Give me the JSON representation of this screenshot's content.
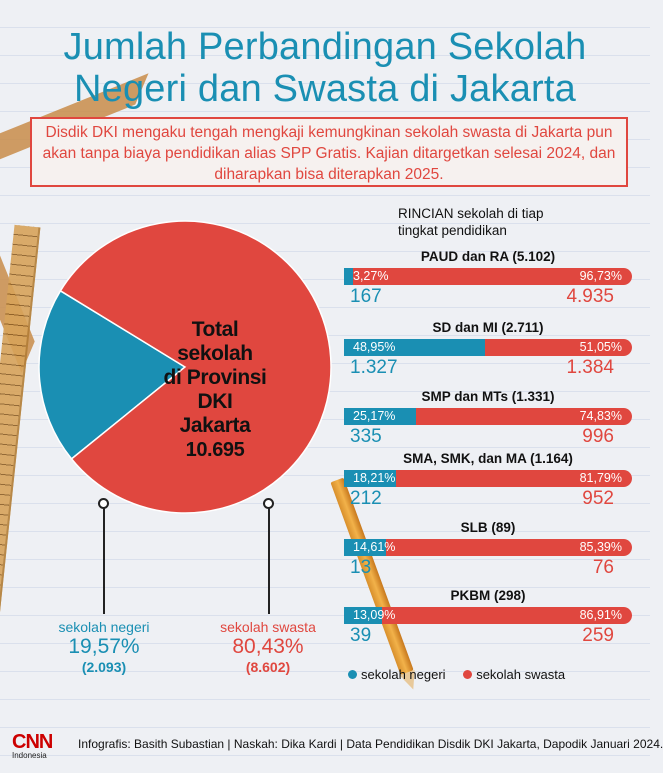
{
  "title_line1": "Jumlah Perbandingan Sekolah",
  "title_line2": "Negeri dan Swasta di Jakarta",
  "lead_text": "Disdik DKI mengaku tengah mengkaji kemungkinan sekolah swasta di Jakarta pun akan tanpa biaya pendidikan alias SPP Gratis. Kajian ditargetkan selesai 2024, dan diharapkan bisa diterapkan 2025.",
  "colors": {
    "negeri": "#1a8fb3",
    "swasta": "#e0473f",
    "title": "#1a8fb3"
  },
  "pie": {
    "center_label": [
      "Total",
      "sekolah",
      "di Provinsi",
      "DKI",
      "Jakarta"
    ],
    "total": "10.695",
    "negeri": {
      "label": "sekolah negeri",
      "pct": "19,57%",
      "count": "(2.093)"
    },
    "swasta": {
      "label": "sekolah swasta",
      "pct": "80,43%",
      "count": "(8.602)"
    }
  },
  "rincian_heading": [
    "RINCIAN sekolah di tiap",
    "tingkat pendidikan"
  ],
  "levels": [
    {
      "name": "PAUD dan RA (5.102)",
      "neg_pct": "3,27%",
      "swa_pct": "96,73%",
      "neg_count": "167",
      "swa_count": "4.935"
    },
    {
      "name": "SD dan MI (2.711)",
      "neg_pct": "48,95%",
      "swa_pct": "51,05%",
      "neg_count": "1.327",
      "swa_count": "1.384"
    },
    {
      "name": "SMP dan MTs (1.331)",
      "neg_pct": "25,17%",
      "swa_pct": "74,83%",
      "neg_count": "335",
      "swa_count": "996"
    },
    {
      "name": "SMA, SMK, dan MA (1.164)",
      "neg_pct": "18,21%",
      "swa_pct": "81,79%",
      "neg_count": "212",
      "swa_count": "952"
    },
    {
      "name": "SLB (89)",
      "neg_pct": "14,61%",
      "swa_pct": "85,39%",
      "neg_count": "13",
      "swa_count": "76"
    },
    {
      "name": "PKBM (298)",
      "neg_pct": "13,09%",
      "swa_pct": "86,91%",
      "neg_count": "39",
      "swa_count": "259"
    }
  ],
  "legend": {
    "negeri": "sekolah negeri",
    "swasta": "sekolah swasta"
  },
  "footer": {
    "logo_text": "CNN",
    "logo_sub": "Indonesia",
    "credit": "Infografis: Basith Subastian | Naskah: Dika Kardi | Data Pendidikan Disdik DKI Jakarta, Dapodik Januari 2024."
  },
  "chart_data": [
    {
      "type": "pie",
      "categories": [
        "sekolah negeri",
        "sekolah swasta"
      ],
      "values": [
        19.57,
        80.43
      ],
      "counts": [
        2093,
        8602
      ],
      "total": 10695
    },
    {
      "type": "bar",
      "stacked": true,
      "orientation": "horizontal",
      "categories": [
        "PAUD dan RA (5.102)",
        "SD dan MI (2.711)",
        "SMP dan MTs (1.331)",
        "SMA, SMK, dan MA (1.164)",
        "SLB (89)",
        "PKBM (298)"
      ],
      "series": [
        {
          "name": "sekolah negeri",
          "values": [
            3.27,
            48.95,
            25.17,
            18.21,
            14.61,
            13.09
          ],
          "counts": [
            167,
            1327,
            335,
            212,
            13,
            39
          ]
        },
        {
          "name": "sekolah swasta",
          "values": [
            96.73,
            51.05,
            74.83,
            81.79,
            85.39,
            86.91
          ],
          "counts": [
            4935,
            1384,
            996,
            952,
            76,
            259
          ]
        }
      ]
    }
  ]
}
